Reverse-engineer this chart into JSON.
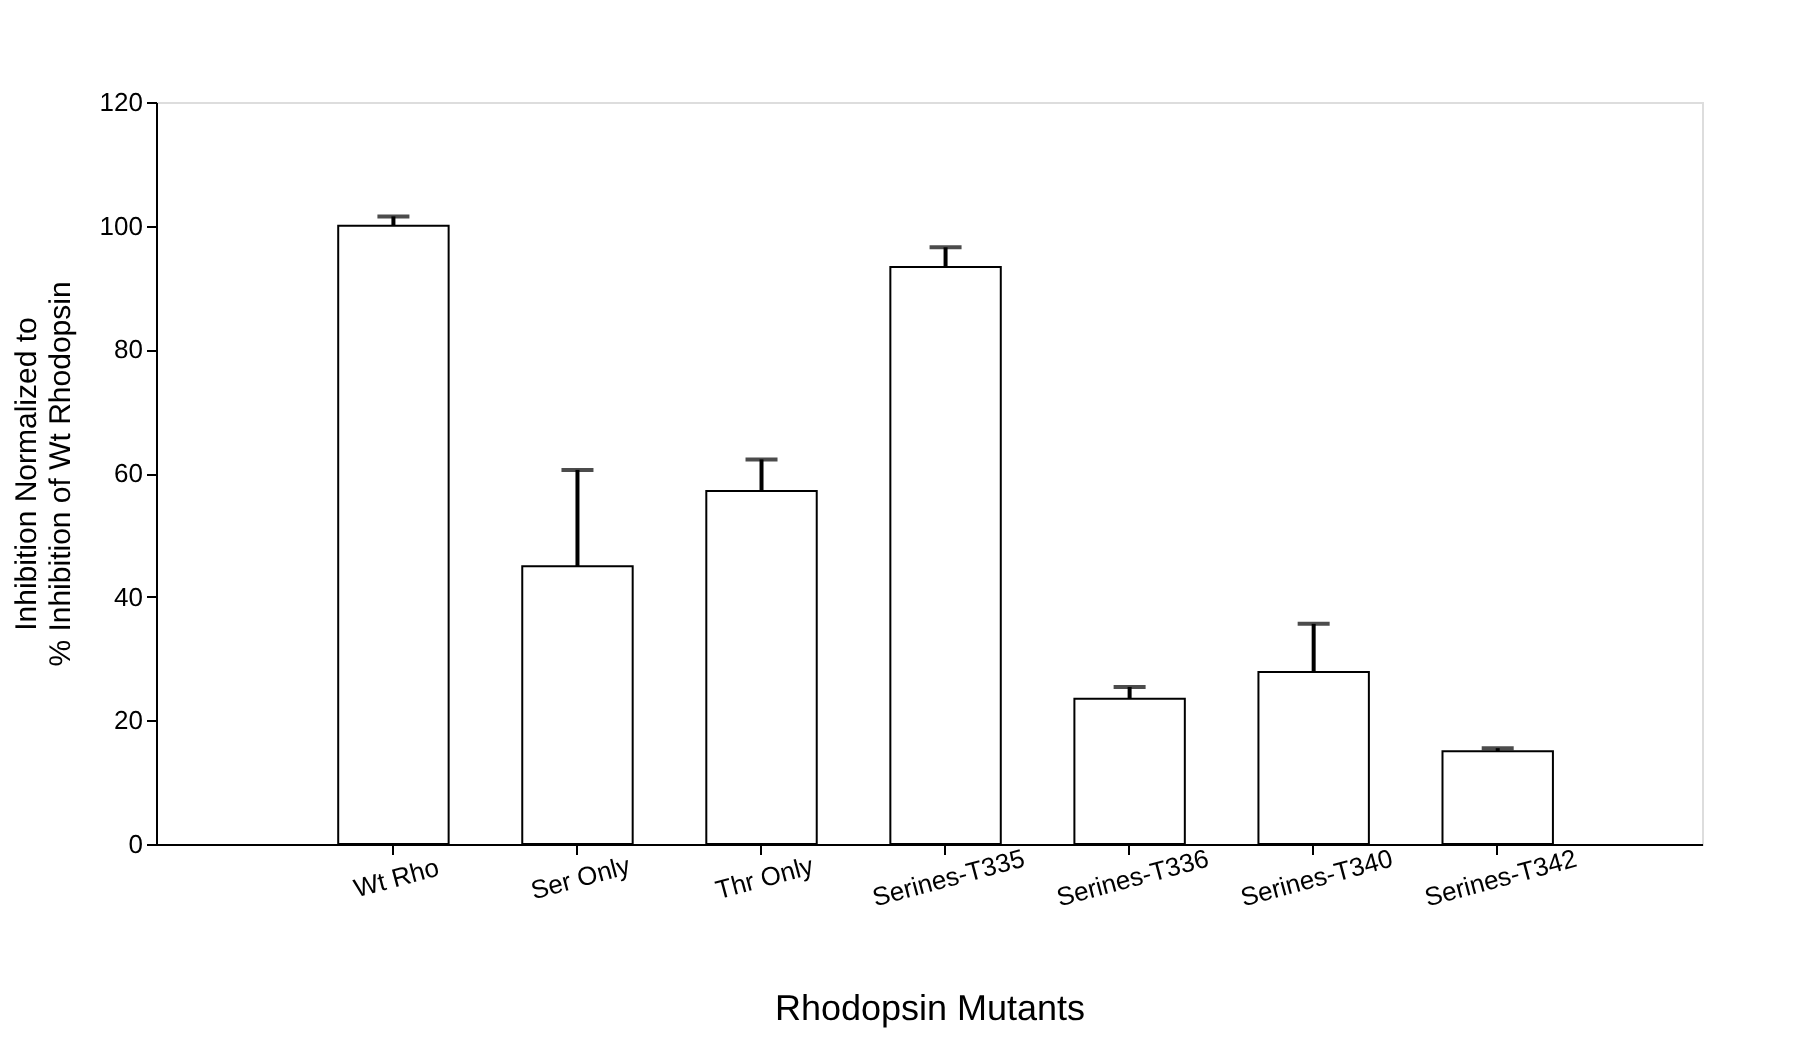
{
  "chart_data": {
    "type": "bar",
    "xlabel": "Rhodopsin Mutants",
    "ylabel": "Inhibition Normalized to\n% Inhibition of Wt Rhodopsin",
    "categories": [
      "Wt Rho",
      "Ser Only",
      "Thr Only",
      "Serines-T335",
      "Serines-T336",
      "Serines-T340",
      "Serines-T342"
    ],
    "values": [
      100,
      44.9,
      57.1,
      93.3,
      23.5,
      27.8,
      15.0
    ],
    "errors": [
      [
        100,
        101.5
      ],
      [
        44.9,
        60.5
      ],
      [
        57.1,
        62.2
      ],
      [
        93.3,
        96.5
      ],
      [
        23.5,
        25.4
      ],
      [
        27.8,
        35.6
      ],
      [
        15.0,
        15.5
      ]
    ],
    "color": "#ffffff",
    "ylim": [
      0,
      120
    ],
    "yticks": [
      0,
      20,
      40,
      60,
      80,
      100,
      120
    ],
    "grid": false
  }
}
